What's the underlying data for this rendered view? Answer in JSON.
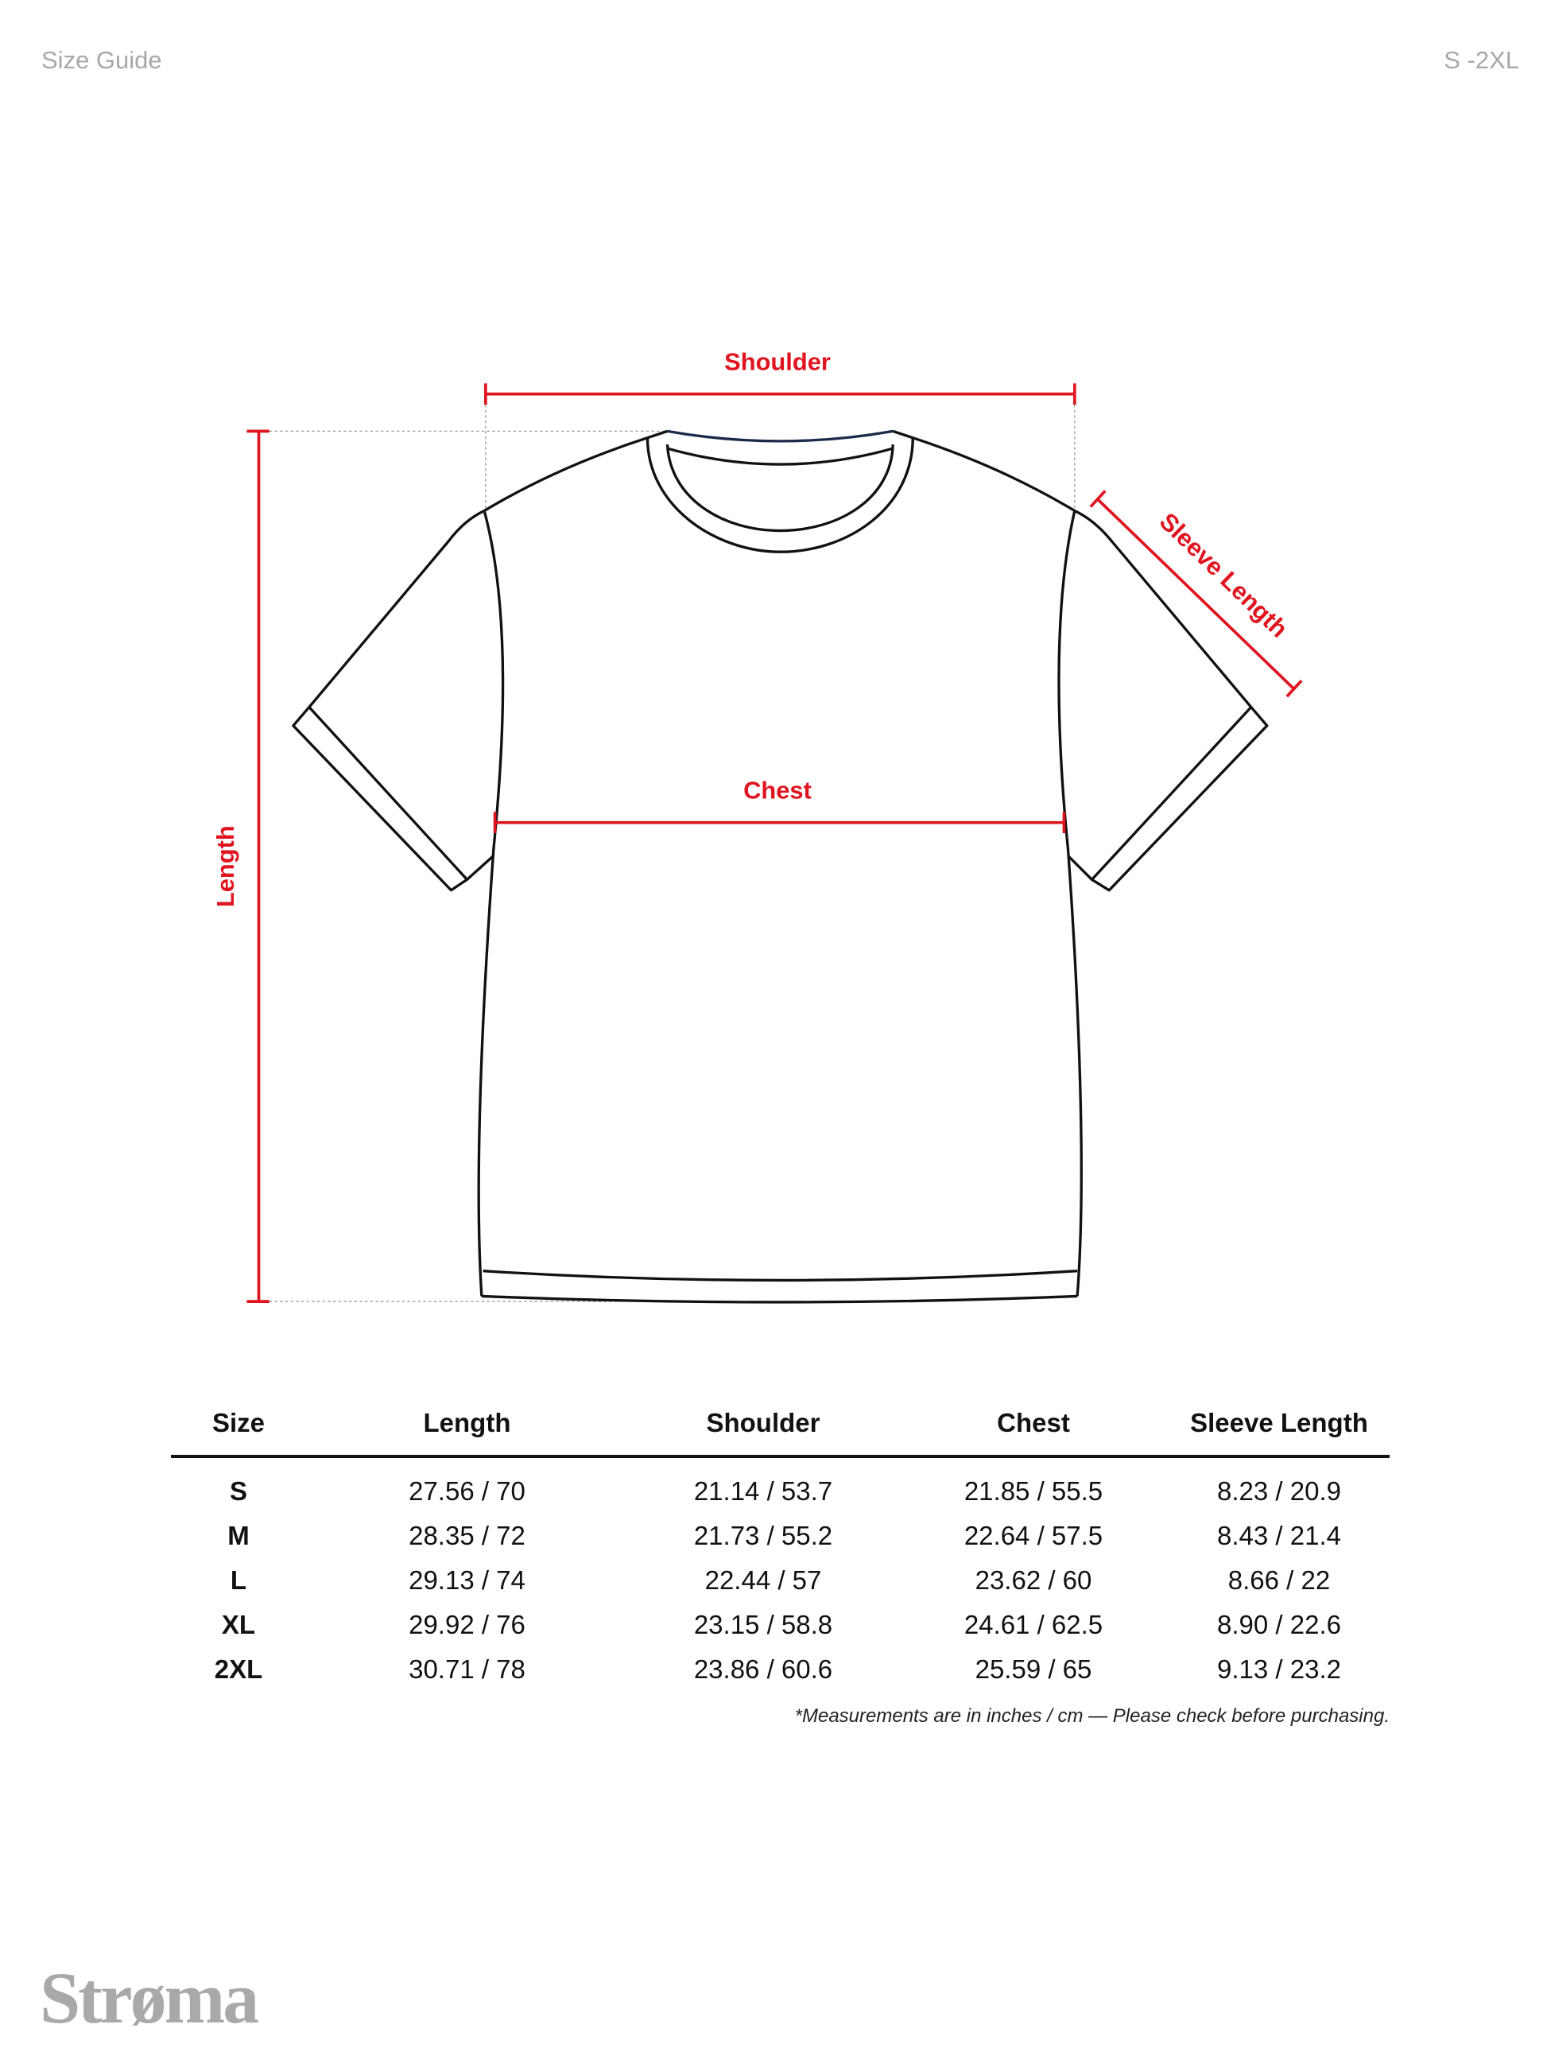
{
  "header": {
    "title": "Size Guide",
    "size_range": "S -2XL"
  },
  "diagram": {
    "labels": {
      "shoulder": "Shoulder",
      "length": "Length",
      "chest": "Chest",
      "sleeve": "Sleeve Length"
    },
    "colors": {
      "measure": "#e0141e",
      "outline": "#111111",
      "guide": "#9a9a9a"
    }
  },
  "table": {
    "columns": [
      "Size",
      "Length",
      "Shoulder",
      "Chest",
      "Sleeve Length"
    ],
    "rows": [
      [
        "S",
        "27.56 / 70",
        "21.14 / 53.7",
        "21.85 / 55.5",
        "8.23 / 20.9"
      ],
      [
        "M",
        "28.35 / 72",
        "21.73 / 55.2",
        "22.64 / 57.5",
        "8.43 / 21.4"
      ],
      [
        "L",
        "29.13 / 74",
        "22.44 / 57",
        "23.62 / 60",
        "8.66 / 22"
      ],
      [
        "XL",
        "29.92 / 76",
        "23.15 / 58.8",
        "24.61 / 62.5",
        "8.90 / 22.6"
      ],
      [
        "2XL",
        "30.71 / 78",
        "23.86 / 60.6",
        "25.59 / 65",
        "9.13 / 23.2"
      ]
    ],
    "note": "*Measurements are in inches / cm — Please check before purchasing."
  },
  "brand": {
    "logo": "Strøma"
  }
}
